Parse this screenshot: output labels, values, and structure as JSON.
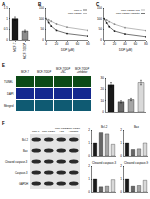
{
  "chart_data": [
    {
      "type": "bar",
      "title": "A",
      "categories": [
        "MCF-7",
        "MCF-7/DDP"
      ],
      "values": [
        1,
        0.42
      ],
      "errors": [
        0.08,
        0.05
      ],
      "colors": [
        "#1a1a1a",
        "#8c8c8c"
      ],
      "ylim": [
        0,
        1.5
      ],
      "yticks": [
        0,
        0.5,
        1,
        1.5
      ]
    },
    {
      "type": "line",
      "title": "B",
      "x": [
        0,
        5,
        10,
        20,
        40,
        80
      ],
      "x_label": "DDP (μM)",
      "marker": "circle",
      "legend": "top right",
      "series": [
        {
          "name": "MCF-7",
          "color": "#1a1a1a",
          "values": [
            100,
            82,
            65,
            45,
            30,
            18
          ]
        },
        {
          "name": "MCF-7/DDP",
          "color": "#8c8c8c",
          "values": [
            100,
            95,
            88,
            75,
            60,
            45
          ]
        }
      ],
      "xlim": [
        0,
        80
      ],
      "xticks": [
        0,
        20,
        40,
        60,
        80
      ],
      "ylim": [
        0,
        150
      ],
      "yticks": [
        0,
        50,
        100,
        150
      ]
    },
    {
      "type": "line",
      "title": "C",
      "x": [
        0,
        5,
        10,
        20,
        40,
        80
      ],
      "x_label": "DDP (μM)",
      "marker": "circle",
      "legend": "top right",
      "series": [
        {
          "name": "MCF-7/DDP+NC",
          "color": "#8c8c8c",
          "values": [
            100,
            94,
            86,
            74,
            58,
            44
          ]
        },
        {
          "name": "MCF-7/DDP+inhibitor",
          "color": "#1a1a1a",
          "values": [
            100,
            80,
            62,
            42,
            28,
            15
          ]
        }
      ],
      "xlim": [
        0,
        80
      ],
      "xticks": [
        0,
        20,
        40,
        60,
        80
      ],
      "ylim": [
        0,
        150
      ],
      "yticks": [
        0,
        50,
        100,
        150
      ]
    },
    {
      "type": "bar",
      "categories": [
        null,
        null,
        null,
        null
      ],
      "values": [
        24,
        9,
        11,
        26
      ],
      "errors": [
        2,
        1,
        1,
        2
      ],
      "colors": [
        "#1a1a1a",
        "#666666",
        "#a6a6a6",
        "#d9d9d9"
      ],
      "ylim": [
        0,
        30
      ],
      "yticks": [
        0,
        10,
        20,
        30
      ]
    },
    {
      "type": "bar",
      "title": "Bcl-2",
      "categories": [
        null,
        null,
        null,
        null
      ],
      "values": [
        1,
        1.8,
        1.7,
        0.9
      ],
      "colors": [
        "#1a1a1a",
        "#666666",
        "#a6a6a6",
        "#d9d9d9"
      ],
      "ylim": [
        0,
        2
      ],
      "yticks": [
        0,
        1,
        2
      ]
    },
    {
      "type": "bar",
      "title": "Bax",
      "categories": [
        null,
        null,
        null,
        null
      ],
      "values": [
        1,
        0.5,
        0.55,
        1
      ],
      "colors": [
        "#1a1a1a",
        "#666666",
        "#a6a6a6",
        "#d9d9d9"
      ],
      "ylim": [
        0,
        2
      ],
      "yticks": [
        0,
        1,
        2
      ]
    },
    {
      "type": "bar",
      "title": "Cleaved caspase-3",
      "categories": [
        null,
        null,
        null,
        null
      ],
      "values": [
        1,
        0.4,
        0.45,
        0.95
      ],
      "colors": [
        "#1a1a1a",
        "#666666",
        "#a6a6a6",
        "#d9d9d9"
      ],
      "ylim": [
        0,
        2
      ],
      "yticks": [
        0,
        1,
        2
      ]
    },
    {
      "type": "bar",
      "title": "Cleaved caspase-9",
      "categories": [
        null,
        null,
        null,
        null
      ],
      "values": [
        1,
        0.45,
        0.5,
        0.9
      ],
      "colors": [
        "#1a1a1a",
        "#666666",
        "#a6a6a6",
        "#d9d9d9"
      ],
      "ylim": [
        0,
        2
      ],
      "yticks": [
        0,
        1,
        2
      ]
    }
  ],
  "images": {
    "label": "E",
    "columns": [
      "MCF-7",
      "MCF-7/DDP",
      "MCF-7/DDP+NC",
      "MCF-7/DDP+inhibitor"
    ],
    "rows": [
      "TUNEL",
      "DAPI",
      "Merged"
    ]
  },
  "blot": {
    "label": "F",
    "columns": [
      "MCF-7",
      "MCF-7/DDP",
      "MCF-7/DDP+NC",
      "MCF-7/DDP+inhibitor"
    ],
    "rows": [
      "Bcl-2",
      "Bax",
      "Cleaved caspase-3",
      "Caspase-3",
      "GAPDH"
    ]
  }
}
